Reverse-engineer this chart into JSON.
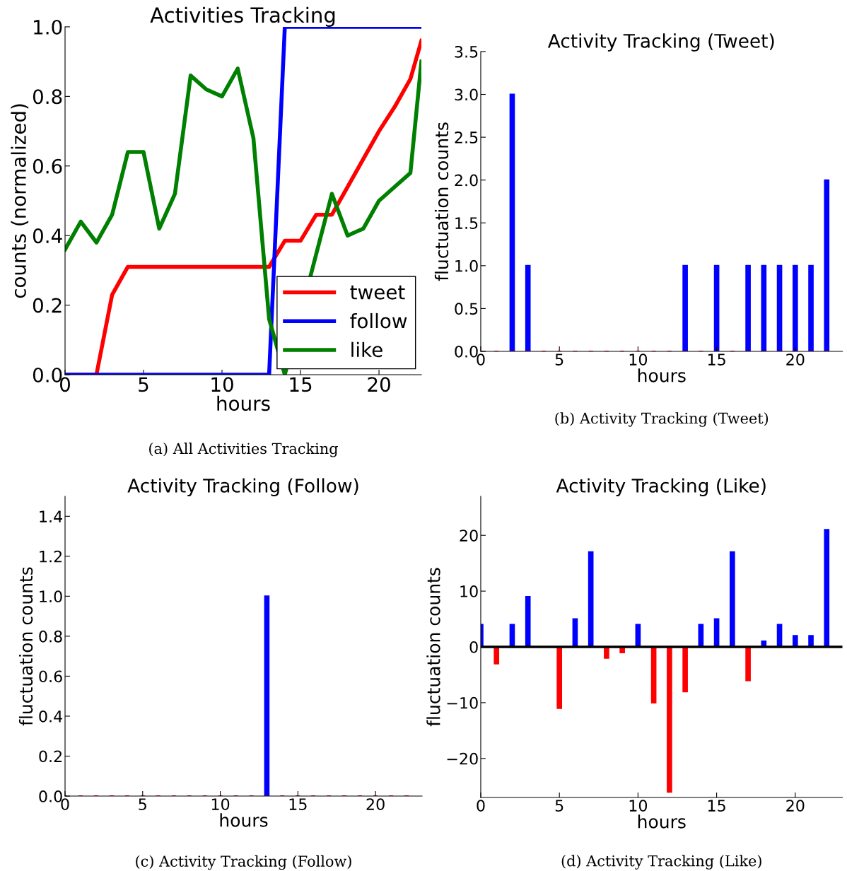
{
  "chart_data": [
    {
      "type": "line",
      "title": "Activities Tracking",
      "xlabel": "hours",
      "ylabel": "counts (normalized)",
      "xlim": [
        0,
        22.7
      ],
      "xticks": [
        0,
        5,
        10,
        15,
        20
      ],
      "ylim": [
        0,
        1.0
      ],
      "yticks": [
        {
          "value": 0,
          "label": "0.0"
        },
        0.2,
        0.4,
        0.6,
        0.8,
        {
          "value": 1,
          "label": "1.0"
        }
      ],
      "legend": "bottom right",
      "grid": false,
      "annotations": [
        "(a) All Activities Tracking"
      ],
      "x": [
        0,
        1,
        2,
        3,
        4,
        5,
        6,
        7,
        8,
        9,
        10,
        11,
        12,
        13,
        14,
        15,
        16,
        17,
        18,
        19,
        20,
        21,
        22,
        22.7
      ],
      "series": [
        {
          "name": "tweet",
          "color": "#ff0000",
          "values": [
            0,
            0,
            0,
            0.23,
            0.31,
            0.31,
            0.31,
            0.31,
            0.31,
            0.31,
            0.31,
            0.31,
            0.31,
            0.31,
            0.385,
            0.385,
            0.46,
            0.46,
            0.54,
            0.62,
            0.7,
            0.77,
            0.85,
            0.96
          ]
        },
        {
          "name": "follow",
          "color": "#0000ff",
          "values": [
            0,
            0,
            0,
            0,
            0,
            0,
            0,
            0,
            0,
            0,
            0,
            0,
            0,
            0,
            1,
            1,
            1,
            1,
            1,
            1,
            1,
            1,
            1,
            1
          ]
        },
        {
          "name": "like",
          "color": "#008000",
          "values": [
            0.36,
            0.44,
            0.38,
            0.46,
            0.64,
            0.64,
            0.42,
            0.52,
            0.86,
            0.82,
            0.8,
            0.88,
            0.68,
            0.16,
            0.0,
            null,
            null,
            0.52,
            0.4,
            0.42,
            0.5,
            0.54,
            0.58,
            0.9
          ]
        }
      ]
    },
    {
      "type": "bar",
      "title": "Activity Tracking (Tweet)",
      "xlabel": "hours",
      "ylabel": "fluctuation counts",
      "xlim": [
        0,
        23
      ],
      "xticks": [
        0,
        5,
        10,
        15,
        20
      ],
      "ylim": [
        0,
        3.5
      ],
      "yticks": [
        {
          "value": 0,
          "label": "0.0"
        },
        0.5,
        {
          "value": 1,
          "label": "1.0"
        },
        1.5,
        {
          "value": 2,
          "label": "2.0"
        },
        2.5,
        {
          "value": 3,
          "label": "3.0"
        },
        3.5
      ],
      "grid": false,
      "annotations": [
        "(b) Activity Tracking (Tweet)"
      ],
      "x": [
        0,
        1,
        2,
        3,
        4,
        5,
        6,
        7,
        8,
        9,
        10,
        11,
        12,
        13,
        14,
        15,
        16,
        17,
        18,
        19,
        20,
        21,
        22
      ],
      "series": [
        {
          "color": "#0000ff",
          "values": [
            0,
            0,
            3,
            1,
            0,
            0,
            0,
            0,
            0,
            0,
            0,
            0,
            0,
            1,
            0,
            1,
            0,
            1,
            1,
            1,
            1,
            1,
            2
          ]
        },
        {
          "color": "#ff0000",
          "values": [
            0,
            0,
            0,
            0,
            0,
            0,
            0,
            0,
            0,
            0,
            0,
            0,
            0,
            0,
            0,
            0,
            0,
            0,
            0,
            0,
            0,
            0,
            0
          ]
        }
      ]
    },
    {
      "type": "bar",
      "title": "Activity Tracking (Follow)",
      "xlabel": "hours",
      "ylabel": "fluctuation counts",
      "xlim": [
        0,
        23
      ],
      "xticks": [
        0,
        5,
        10,
        15,
        20
      ],
      "ylim": [
        0,
        1.5
      ],
      "yticks": [
        {
          "value": 0,
          "label": "0.0"
        },
        0.2,
        0.4,
        0.6,
        0.8,
        {
          "value": 1,
          "label": "1.0"
        },
        1.2,
        1.4
      ],
      "grid": false,
      "annotations": [
        "(c) Activity Tracking (Follow)"
      ],
      "x": [
        0,
        1,
        2,
        3,
        4,
        5,
        6,
        7,
        8,
        9,
        10,
        11,
        12,
        13,
        14,
        15,
        16,
        17,
        18,
        19,
        20,
        21,
        22
      ],
      "series": [
        {
          "color": "#0000ff",
          "values": [
            0,
            0,
            0,
            0,
            0,
            0,
            0,
            0,
            0,
            0,
            0,
            0,
            0,
            1,
            0,
            0,
            0,
            0,
            0,
            0,
            0,
            0,
            0
          ]
        },
        {
          "color": "#ff0000",
          "values": [
            0,
            0,
            0,
            0,
            0,
            0,
            0,
            0,
            0,
            0,
            0,
            0,
            0,
            0,
            0,
            0,
            0,
            0,
            0,
            0,
            0,
            0,
            0
          ]
        }
      ]
    },
    {
      "type": "bar",
      "title": "Activity Tracking (Like)",
      "xlabel": "hours",
      "ylabel": "fluctuation counts",
      "xlim": [
        0,
        23
      ],
      "xticks": [
        0,
        5,
        10,
        15,
        20
      ],
      "ylim": [
        -27,
        27
      ],
      "yticks": [
        {
          "value": -20,
          "label": "−20"
        },
        {
          "value": -10,
          "label": "−10"
        },
        0,
        10,
        20
      ],
      "grid": false,
      "annotations": [
        "(d) Activity Tracking (Like)"
      ],
      "ref_lines": [
        {
          "axis": "y",
          "value": 0,
          "color": "#000000"
        }
      ],
      "x": [
        0,
        1,
        2,
        3,
        4,
        5,
        6,
        7,
        8,
        9,
        10,
        11,
        12,
        13,
        14,
        15,
        16,
        17,
        18,
        19,
        20,
        21,
        22
      ],
      "series": [
        {
          "color": "#0000ff",
          "values": [
            4,
            0,
            4,
            9,
            0,
            0,
            5,
            17,
            0,
            0,
            4,
            0,
            0,
            0,
            4,
            5,
            17,
            0,
            1,
            4,
            2,
            2,
            21
          ]
        },
        {
          "color": "#ff0000",
          "values": [
            0,
            -3,
            0,
            0,
            0,
            -11,
            0,
            0,
            -2,
            -1,
            0,
            -10,
            -26,
            -8,
            0,
            0,
            0,
            -6,
            0,
            0,
            0,
            0,
            0
          ]
        }
      ]
    }
  ]
}
